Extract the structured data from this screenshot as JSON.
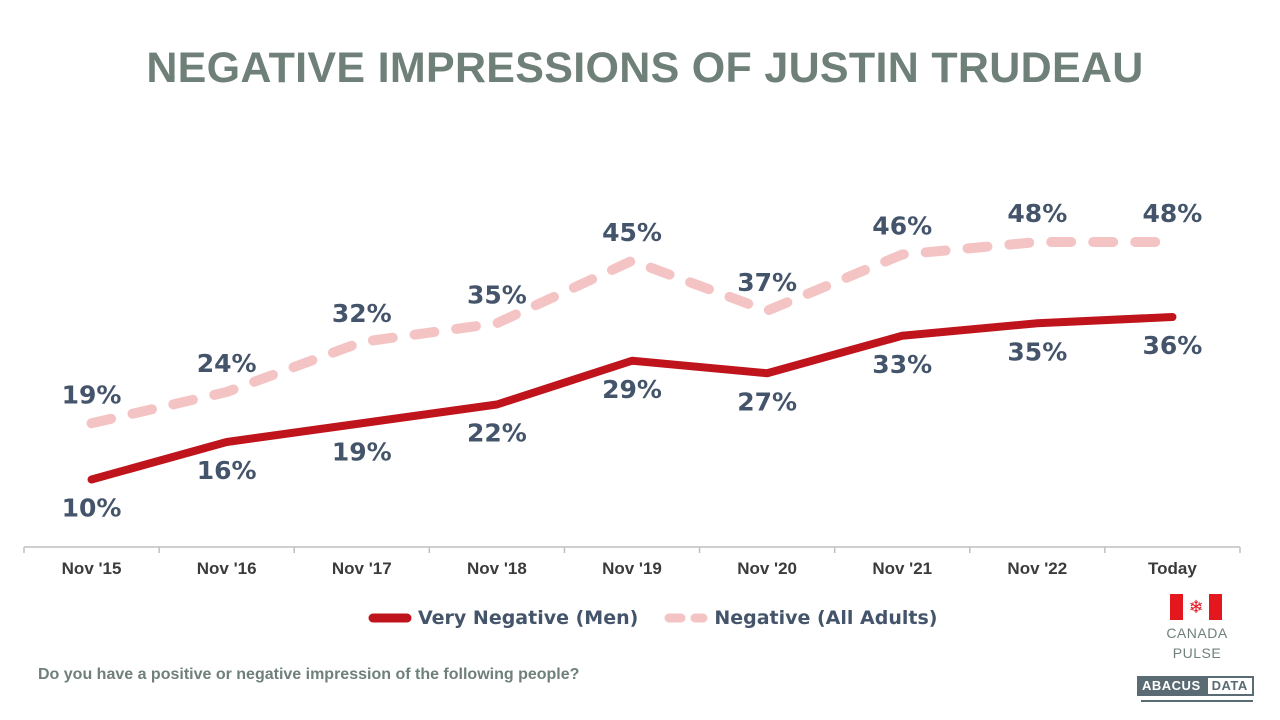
{
  "title": "NEGATIVE IMPRESSIONS OF JUSTIN TRUDEAU",
  "question": "Do you have a positive or negative impression of the following people?",
  "branding": {
    "pulse_line1": "CANADA",
    "pulse_line2": "PULSE",
    "flag_icon": "canada-flag-icon",
    "logo_part1": "ABACUS",
    "logo_part2": "DATA"
  },
  "colors": {
    "title": "#6f8079",
    "series_men": "#c0141c",
    "series_all": "#f4c4c4",
    "labels": "#44546a"
  },
  "chart_data": {
    "type": "line",
    "categories": [
      "Nov '15",
      "Nov '16",
      "Nov '17",
      "Nov '18",
      "Nov '19",
      "Nov '20",
      "Nov '21",
      "Nov '22",
      "Today"
    ],
    "series": [
      {
        "name": "Very Negative (Men)",
        "values": [
          10,
          16,
          19,
          22,
          29,
          27,
          33,
          35,
          36
        ],
        "labels": [
          "10%",
          "16%",
          "19%",
          "22%",
          "29%",
          "27%",
          "33%",
          "35%",
          "36%"
        ],
        "color": "#c0141c",
        "style": "solid"
      },
      {
        "name": "Negative (All Adults)",
        "values": [
          19,
          24,
          32,
          35,
          45,
          37,
          46,
          48,
          48
        ],
        "labels": [
          "19%",
          "24%",
          "32%",
          "35%",
          "45%",
          "37%",
          "46%",
          "48%",
          "48%"
        ],
        "color": "#f4c4c4",
        "style": "dashed"
      }
    ],
    "xlabel": "",
    "ylabel": "",
    "ylim": [
      0,
      60
    ],
    "grid": false,
    "legend": "bottom-center"
  }
}
